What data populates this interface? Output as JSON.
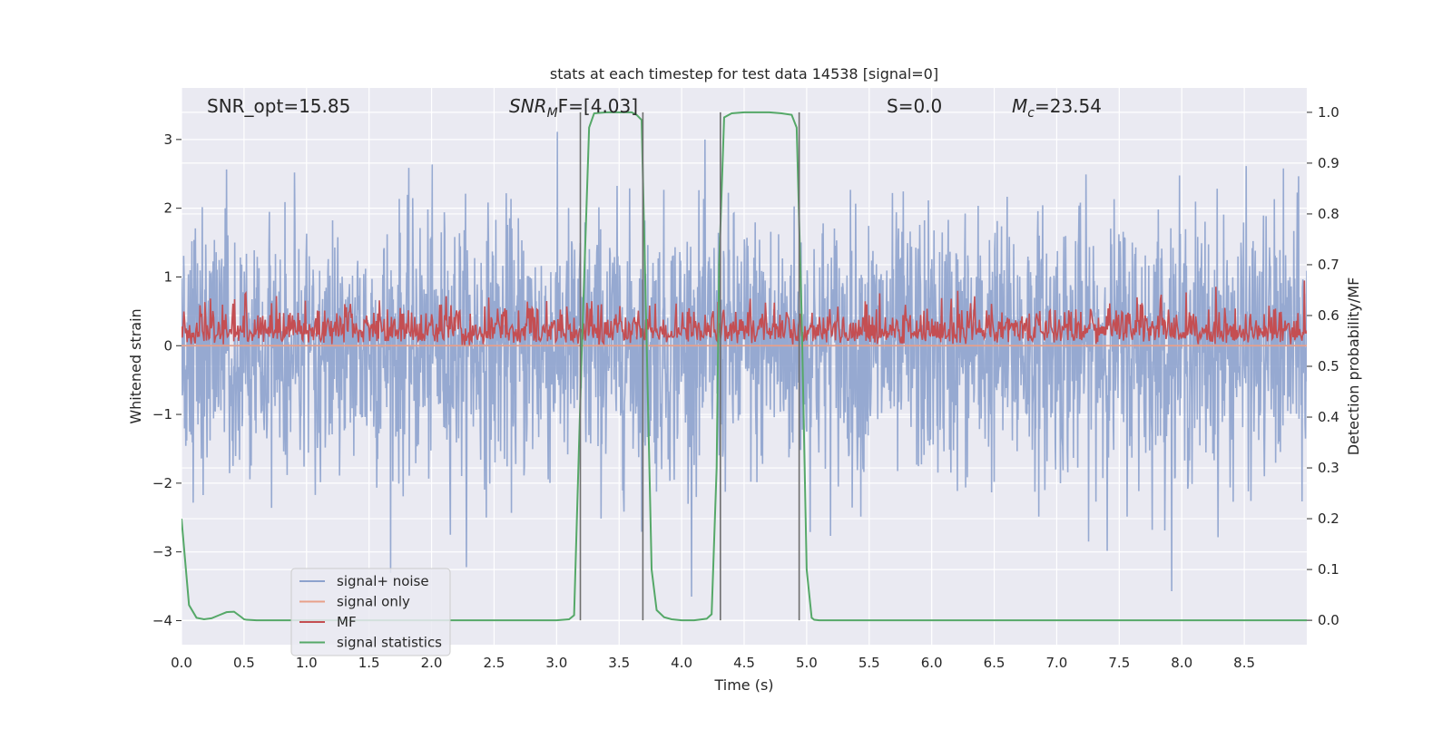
{
  "chart_data": {
    "type": "line",
    "title": "stats at each timestep for test data 14538 [signal=0]",
    "xlabel": "Time (s)",
    "ylabel_left": "Whitened strain",
    "ylabel_right": "Detection probability/MF",
    "xlim": [
      0,
      9.0
    ],
    "ylim_left": [
      -4.35,
      3.75
    ],
    "ylim_right": [
      -0.048,
      1.048
    ],
    "grid": true,
    "x_ticks": [
      "0.0",
      "0.5",
      "1.0",
      "1.5",
      "2.0",
      "2.5",
      "3.0",
      "3.5",
      "4.0",
      "4.5",
      "5.0",
      "5.5",
      "6.0",
      "6.5",
      "7.0",
      "7.5",
      "8.0",
      "8.5"
    ],
    "y_ticks_left": [
      "−4",
      "−3",
      "−2",
      "−1",
      "0",
      "1",
      "2",
      "3"
    ],
    "y_ticks_right": [
      "0.0",
      "0.1",
      "0.2",
      "0.3",
      "0.4",
      "0.5",
      "0.6",
      "0.7",
      "0.8",
      "0.9",
      "1.0"
    ],
    "annotations": {
      "snr_opt": "SNR_opt=15.85",
      "snr_mf_base": "SNR",
      "snr_mf_sub": "M",
      "snr_mf_rest": "F=[4.03]",
      "s_label": "S=0.0",
      "mc_base": "M",
      "mc_sub": "c",
      "mc_rest": "=23.54"
    },
    "legend_position": "lower-left",
    "legend": [
      {
        "label": "signal+ noise",
        "color": "#8da2cd"
      },
      {
        "label": "signal only",
        "color": "#e8a08a"
      },
      {
        "label": "MF",
        "color": "#c44e52"
      },
      {
        "label": "signal statistics",
        "color": "#55a868"
      }
    ],
    "series": [
      {
        "name": "signal+ noise",
        "axis": "left",
        "color": "#8da2cd",
        "description_values": {
          "typical_range": [
            -1.8,
            1.9
          ],
          "max": 3.45,
          "min": -3.65
        }
      },
      {
        "name": "signal only",
        "axis": "left",
        "color": "#e8a08a",
        "x": [
          0.0,
          9.0
        ],
        "y": [
          0.0,
          0.0
        ]
      },
      {
        "name": "MF",
        "axis": "left",
        "color": "#c44e52",
        "description_values": {
          "typical_range": [
            0.0,
            0.65
          ],
          "max": 0.97
        }
      },
      {
        "name": "signal statistics",
        "axis": "right",
        "color": "#55a868",
        "x": [
          0.0,
          0.06,
          0.12,
          0.18,
          0.24,
          0.3,
          0.36,
          0.42,
          0.48,
          0.5,
          0.52,
          0.6,
          1.0,
          1.5,
          2.0,
          2.5,
          3.0,
          3.1,
          3.14,
          3.2,
          3.26,
          3.3,
          3.4,
          3.5,
          3.6,
          3.64,
          3.68,
          3.72,
          3.76,
          3.8,
          3.86,
          3.92,
          4.0,
          4.1,
          4.2,
          4.24,
          4.28,
          4.3,
          4.34,
          4.4,
          4.5,
          4.6,
          4.7,
          4.8,
          4.88,
          4.92,
          4.96,
          5.0,
          5.04,
          5.06,
          5.1,
          5.5,
          6.0,
          6.5,
          7.0,
          7.5,
          8.0,
          8.5,
          9.0
        ],
        "y": [
          0.2,
          0.03,
          0.005,
          0.002,
          0.004,
          0.01,
          0.016,
          0.017,
          0.006,
          0.002,
          0.001,
          0.0,
          0.0,
          0.0,
          0.0,
          0.0,
          0.0,
          0.002,
          0.01,
          0.52,
          0.97,
          0.998,
          1.0,
          1.0,
          1.0,
          0.995,
          0.985,
          0.55,
          0.1,
          0.02,
          0.006,
          0.002,
          0.0,
          0.0,
          0.003,
          0.012,
          0.3,
          0.7,
          0.99,
          0.998,
          1.0,
          1.0,
          1.0,
          0.998,
          0.995,
          0.97,
          0.6,
          0.1,
          0.005,
          0.001,
          0.0,
          0.0,
          0.0,
          0.0,
          0.0,
          0.0,
          0.0,
          0.0,
          0.0
        ]
      }
    ],
    "vertical_lines_x": [
      3.19,
      3.69,
      4.31,
      4.94
    ]
  }
}
